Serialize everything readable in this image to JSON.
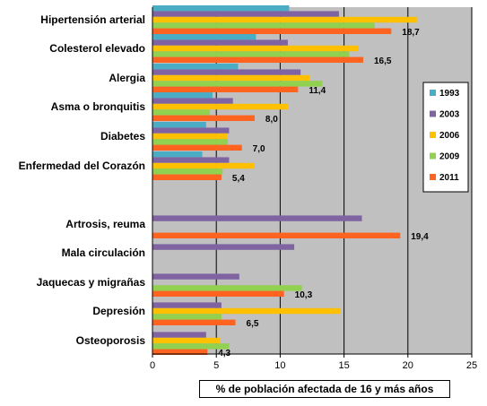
{
  "chart_data": {
    "type": "bar",
    "orientation": "horizontal",
    "xlabel": "% de población afectada de 16 y más años",
    "xlim": [
      0,
      25
    ],
    "xticks": [
      0,
      5,
      10,
      15,
      20,
      25
    ],
    "grid": "vertical",
    "legend_position": "right",
    "categories": [
      "Hipertensión arterial",
      "Colesterol elevado",
      "Alergia",
      "Asma o bronquitis",
      "Diabetes",
      "Enfermedad del Corazón",
      "Artrosis, reuma",
      "Mala circulación",
      "Jaquecas y migrañas",
      "Depresión",
      "Osteoporosis"
    ],
    "series": [
      {
        "name": "1993",
        "color": "#4bacc6",
        "values": [
          10.7,
          8.1,
          6.7,
          4.7,
          4.2,
          3.9,
          null,
          null,
          null,
          null,
          null
        ]
      },
      {
        "name": "2003",
        "color": "#8064a2",
        "values": [
          14.6,
          10.6,
          11.6,
          6.3,
          6.0,
          6.0,
          16.4,
          11.1,
          6.8,
          5.4,
          4.2
        ]
      },
      {
        "name": "2006",
        "color": "#ffc000",
        "values": [
          20.7,
          16.1,
          12.3,
          10.6,
          5.9,
          8.0,
          null,
          null,
          null,
          14.7,
          5.3
        ]
      },
      {
        "name": "2009",
        "color": "#92d050",
        "values": [
          17.4,
          15.4,
          13.3,
          4.5,
          5.9,
          5.5,
          null,
          null,
          11.7,
          5.4,
          6.0
        ]
      },
      {
        "name": "2011",
        "color": "#ff6320",
        "values": [
          18.7,
          16.5,
          11.4,
          8.0,
          7.0,
          5.4,
          19.4,
          null,
          10.3,
          6.5,
          4.3
        ]
      }
    ],
    "data_labels": [
      {
        "category": "Hipertensión arterial",
        "series": "2011",
        "text": "18,7"
      },
      {
        "category": "Colesterol elevado",
        "series": "2011",
        "text": "16,5"
      },
      {
        "category": "Alergia",
        "series": "2011",
        "text": "11,4"
      },
      {
        "category": "Asma o bronquitis",
        "series": "2011",
        "text": "8,0"
      },
      {
        "category": "Diabetes",
        "series": "2011",
        "text": "7,0"
      },
      {
        "category": "Enfermedad del Corazón",
        "series": "2011",
        "text": "5,4"
      },
      {
        "category": "Artrosis, reuma",
        "series": "2011",
        "text": "19,4"
      },
      {
        "category": "Jaquecas y migrañas",
        "series": "2011",
        "text": "10,3"
      },
      {
        "category": "Depresión",
        "series": "2011",
        "text": "6,5"
      },
      {
        "category": "Osteoporosis",
        "series": "2011",
        "text": "4,3"
      }
    ]
  }
}
